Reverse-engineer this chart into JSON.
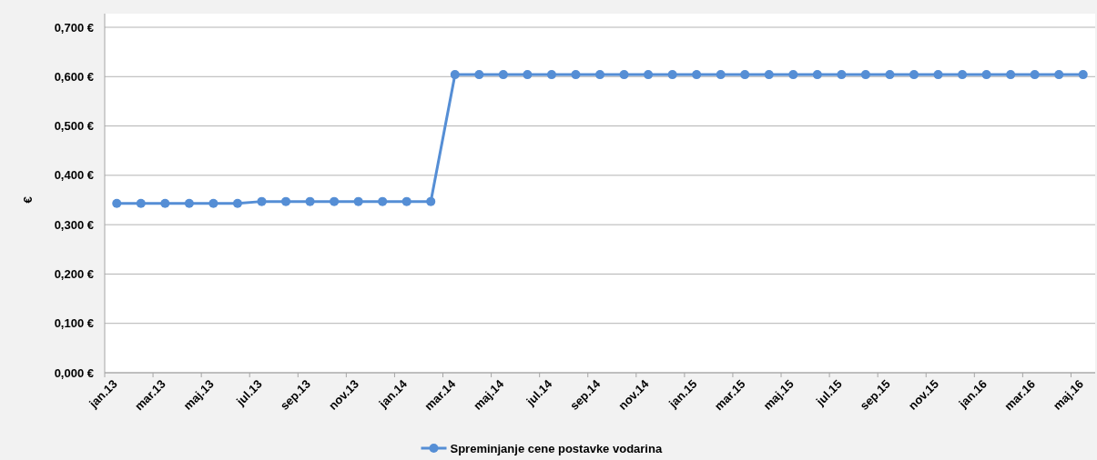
{
  "chart_data": {
    "type": "line",
    "ylabel": "€",
    "categories": [
      "jan.13",
      null,
      "mar.13",
      null,
      "maj.13",
      null,
      "jul.13",
      null,
      "sep.13",
      null,
      "nov.13",
      null,
      "jan.14",
      null,
      "mar.14",
      null,
      "maj.14",
      null,
      "jul.14",
      null,
      "sep.14",
      null,
      "nov.14",
      null,
      "jan.15",
      null,
      "mar.15",
      null,
      "maj.15",
      null,
      "jul.15",
      null,
      "sep.15",
      null,
      "nov.15",
      null,
      "jan.16",
      null,
      "mar.16",
      null,
      "maj.16"
    ],
    "series": [
      {
        "name": "Spreminjanje cene postavke vodarina",
        "color": "#558ed5",
        "values": [
          0.343,
          0.343,
          0.343,
          0.343,
          0.343,
          0.343,
          0.347,
          0.347,
          0.347,
          0.347,
          0.347,
          0.347,
          0.347,
          0.347,
          0.604,
          0.604,
          0.604,
          0.604,
          0.604,
          0.604,
          0.604,
          0.604,
          0.604,
          0.604,
          0.604,
          0.604,
          0.604,
          0.604,
          0.604,
          0.604,
          0.604,
          0.604,
          0.604,
          0.604,
          0.604,
          0.604,
          0.604,
          0.604,
          0.604,
          0.604,
          0.604
        ]
      }
    ],
    "ylim": [
      0,
      0.7
    ],
    "yticks": [
      {
        "value": 0,
        "label": "0,000 €"
      },
      {
        "value": 0.1,
        "label": "0,100 €"
      },
      {
        "value": 0.2,
        "label": "0,200 €"
      },
      {
        "value": 0.3,
        "label": "0,300 €"
      },
      {
        "value": 0.4,
        "label": "0,400 €"
      },
      {
        "value": 0.5,
        "label": "0,500 €"
      },
      {
        "value": 0.6,
        "label": "0,600 €"
      },
      {
        "value": 0.7,
        "label": "0,700 €"
      }
    ],
    "grid": "y",
    "legend": "bottom",
    "marker": "circle",
    "line_style": "solid"
  }
}
